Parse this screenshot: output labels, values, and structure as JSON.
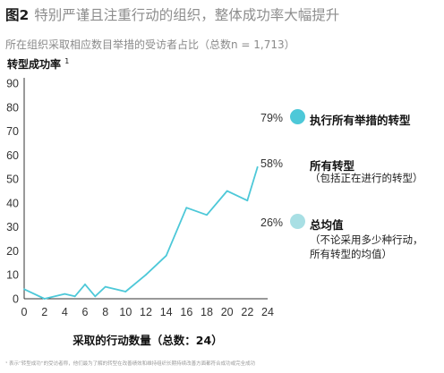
{
  "header": {
    "figure_number": "图2",
    "title": "特别严谨且注重行动的组织，整体成功率大幅提升",
    "subtitle": "所在组织采取相应数目举措的受访者占比（总数n = 1,713）"
  },
  "footnote": "¹ 表示“转型成功”的受访者称，他们最为了解的转型在改善绩效和维持组织长期持续改善方面都符合成功或完全成功",
  "colors": {
    "line": "#4dc8d8",
    "dot_top": "#4dc8d8",
    "dot_avg": "#a8dfe4"
  },
  "legend": {
    "top": {
      "pct": "79%",
      "label": "执行所有举措的转型"
    },
    "all": {
      "pct": "58%",
      "label": "所有转型",
      "note": "（包括正在进行的转型）"
    },
    "avg": {
      "pct": "26%",
      "label": "总均值",
      "note1": "（不论采用多少种行动，",
      "note2": "所有转型的均值）"
    }
  },
  "chart_data": {
    "type": "line",
    "ylabel": "转型成功率",
    "ylabel_sup": "1",
    "xlabel": "采取的行动数量（总数：24）",
    "xlim": [
      0,
      24
    ],
    "ylim": [
      0,
      90
    ],
    "xticks": [
      0,
      2,
      4,
      6,
      8,
      10,
      12,
      14,
      16,
      18,
      20,
      22,
      24
    ],
    "yticks": [
      0,
      10,
      20,
      30,
      40,
      50,
      60,
      70,
      80,
      90
    ],
    "grid": false,
    "series": [
      {
        "x": [
          0,
          2,
          4,
          5,
          6,
          7,
          8,
          10,
          12,
          14,
          16,
          18,
          20,
          22,
          23
        ],
        "y": [
          4,
          0,
          2,
          1,
          6,
          1,
          5,
          3,
          10,
          18,
          38,
          35,
          45,
          41,
          55
        ]
      }
    ]
  }
}
